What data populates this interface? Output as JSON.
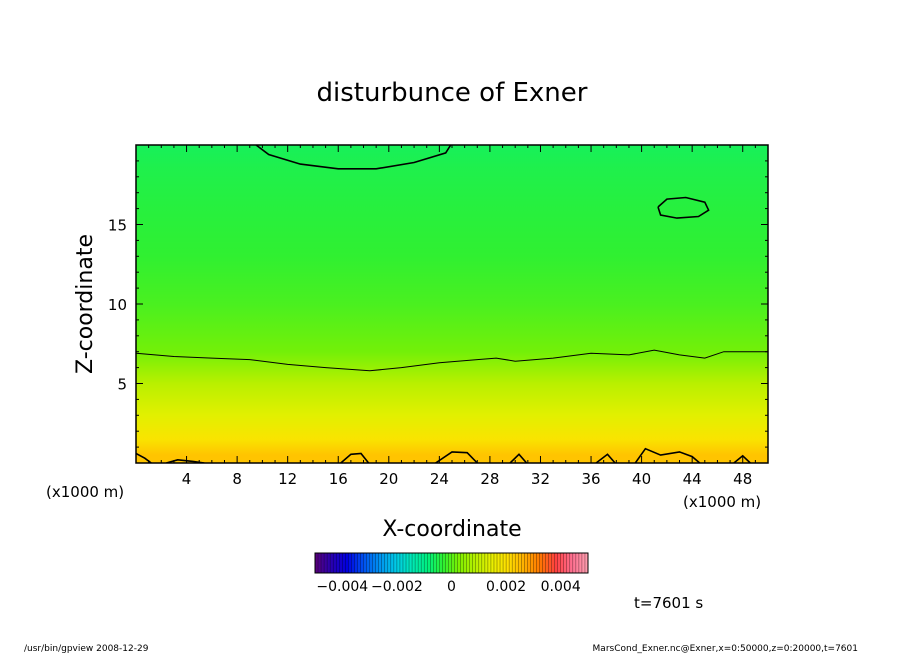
{
  "chart_data": {
    "type": "heatmap",
    "title": "disturbunce of Exner",
    "xlabel": "X-coordinate",
    "ylabel": "Z-coordinate",
    "x_unit_label": "(x1000 m)",
    "y_unit_label": "(x1000 m)",
    "xlim": [
      0,
      50
    ],
    "ylim": [
      0,
      20
    ],
    "x_ticks": [
      4,
      8,
      12,
      16,
      20,
      24,
      28,
      32,
      36,
      40,
      44,
      48
    ],
    "y_ticks": [
      5,
      10,
      15
    ],
    "grid": false,
    "colorbar": {
      "range": [
        -0.005,
        0.005
      ],
      "tick_values": [
        -0.004,
        -0.002,
        0,
        0.002,
        0.004
      ],
      "tick_labels": [
        "−0.004",
        "−0.002",
        "0",
        "0.002",
        "0.004"
      ],
      "colors": [
        "#5a007a",
        "#2a00b0",
        "#0000e0",
        "#0050f0",
        "#0090f0",
        "#00c8e8",
        "#00e8b8",
        "#00f080",
        "#30f030",
        "#80f000",
        "#b8f000",
        "#e8f000",
        "#ffe000",
        "#ffb000",
        "#ff7800",
        "#ff4040",
        "#ff7090",
        "#ffa0b0"
      ]
    },
    "field_rows": [
      {
        "z": 0.5,
        "value": 0.0024
      },
      {
        "z": 1.5,
        "value": 0.0019
      },
      {
        "z": 3,
        "value": 0.0014
      },
      {
        "z": 5,
        "value": 0.0009
      },
      {
        "z": 7,
        "value": 0.0002
      },
      {
        "z": 10,
        "value": -0.0001
      },
      {
        "z": 13,
        "value": -0.0003
      },
      {
        "z": 16,
        "value": -0.0004
      },
      {
        "z": 18.5,
        "value": -0.0005
      },
      {
        "z": 20,
        "value": -0.0006
      }
    ],
    "contours": [
      {
        "label": "mid-level contour",
        "points": [
          [
            0,
            6.9
          ],
          [
            3,
            6.7
          ],
          [
            6,
            6.6
          ],
          [
            9,
            6.5
          ],
          [
            12,
            6.2
          ],
          [
            15,
            6.0
          ],
          [
            18.5,
            5.8
          ],
          [
            21,
            6.0
          ],
          [
            24,
            6.3
          ],
          [
            27,
            6.5
          ],
          [
            28.5,
            6.6
          ],
          [
            30,
            6.4
          ],
          [
            33,
            6.6
          ],
          [
            36,
            6.9
          ],
          [
            39,
            6.8
          ],
          [
            41,
            7.1
          ],
          [
            43,
            6.8
          ],
          [
            45,
            6.6
          ],
          [
            46.5,
            7.0
          ],
          [
            50,
            7.0
          ]
        ]
      },
      {
        "label": "top contour",
        "points": [
          [
            9.5,
            20
          ],
          [
            10.5,
            19.4
          ],
          [
            13,
            18.8
          ],
          [
            16,
            18.5
          ],
          [
            19,
            18.5
          ],
          [
            22,
            18.9
          ],
          [
            24.5,
            19.5
          ],
          [
            24.9,
            20
          ]
        ]
      },
      {
        "label": "upper-right closed contour",
        "points": [
          [
            41.3,
            16.1
          ],
          [
            42,
            16.6
          ],
          [
            43.5,
            16.7
          ],
          [
            45,
            16.4
          ],
          [
            45.3,
            15.9
          ],
          [
            44.5,
            15.5
          ],
          [
            42.8,
            15.4
          ],
          [
            41.5,
            15.6
          ],
          [
            41.3,
            16.1
          ]
        ]
      },
      {
        "label": "bottom bump 1",
        "points": [
          [
            0,
            0.6
          ],
          [
            0.7,
            0.3
          ],
          [
            1.2,
            0
          ]
        ]
      },
      {
        "label": "bottom bump 2",
        "points": [
          [
            2.4,
            0
          ],
          [
            3.3,
            0.2
          ],
          [
            4.5,
            0.1
          ],
          [
            5.4,
            0
          ]
        ]
      },
      {
        "label": "bottom bump 3",
        "points": [
          [
            16.2,
            0
          ],
          [
            17,
            0.55
          ],
          [
            17.8,
            0.6
          ],
          [
            18.4,
            0
          ]
        ]
      },
      {
        "label": "bottom bump 4",
        "points": [
          [
            23.7,
            0
          ],
          [
            25,
            0.7
          ],
          [
            26.2,
            0.65
          ],
          [
            27,
            0
          ]
        ]
      },
      {
        "label": "bottom bump 5",
        "points": [
          [
            29.6,
            0
          ],
          [
            30.3,
            0.55
          ],
          [
            30.9,
            0
          ]
        ]
      },
      {
        "label": "bottom bump 6",
        "points": [
          [
            36.4,
            0
          ],
          [
            37.3,
            0.55
          ],
          [
            37.9,
            0
          ]
        ]
      },
      {
        "label": "bottom bump 7",
        "points": [
          [
            39.5,
            0
          ],
          [
            40.3,
            0.9
          ],
          [
            41.5,
            0.5
          ],
          [
            43,
            0.7
          ],
          [
            44,
            0.4
          ],
          [
            44.6,
            0
          ]
        ]
      },
      {
        "label": "bottom bump 8",
        "points": [
          [
            47.3,
            0
          ],
          [
            48,
            0.45
          ],
          [
            48.6,
            0
          ]
        ]
      }
    ]
  },
  "time_label": "t=7601 s",
  "footer_left": "/usr/bin/gpview   2008-12-29",
  "footer_right": "MarsCond_Exner.nc@Exner,x=0:50000,z=0:20000,t=7601"
}
